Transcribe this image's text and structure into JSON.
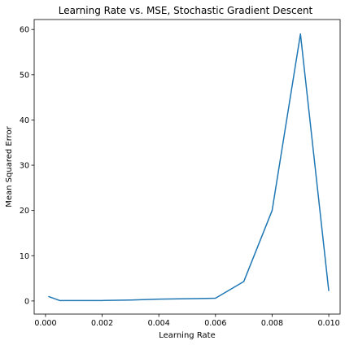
{
  "chart_data": {
    "type": "line",
    "title": "Learning Rate vs. MSE, Stochastic Gradient Descent",
    "xlabel": "Learning Rate",
    "ylabel": "Mean Squared Error",
    "xlim": [
      -0.0004,
      0.0104
    ],
    "ylim": [
      -2.9,
      62.2
    ],
    "xticks": [
      0.0,
      0.002,
      0.004,
      0.006,
      0.008,
      0.01
    ],
    "xtick_labels": [
      "0.000",
      "0.002",
      "0.004",
      "0.006",
      "0.008",
      "0.010"
    ],
    "yticks": [
      0,
      10,
      20,
      30,
      40,
      50,
      60
    ],
    "ytick_labels": [
      "0",
      "10",
      "20",
      "30",
      "40",
      "50",
      "60"
    ],
    "grid": false,
    "series": [
      {
        "color": "#1f77b4",
        "x": [
          0.0001,
          0.0005,
          0.001,
          0.002,
          0.003,
          0.004,
          0.005,
          0.006,
          0.007,
          0.008,
          0.009,
          0.01
        ],
        "y": [
          1.0,
          0.1,
          0.1,
          0.1,
          0.2,
          0.4,
          0.5,
          0.6,
          4.3,
          20.0,
          59.0,
          2.2
        ]
      }
    ]
  }
}
